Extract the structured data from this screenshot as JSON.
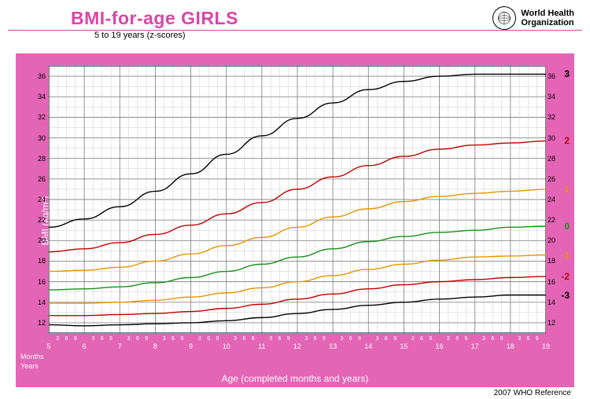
{
  "header": {
    "title": "BMI-for-age  GIRLS",
    "subtitle": "5 to 19 years (z-scores)",
    "org_line1": "World Health",
    "org_line2": "Organization"
  },
  "footer": {
    "text": "2007 WHO Reference"
  },
  "chart": {
    "type": "line",
    "background_color": "#ffffff",
    "frame_color": "#e464b6",
    "grid_major_color": "#888888",
    "grid_minor_color": "#cccccc",
    "ylabel": "BMI (kg/m²)",
    "xlabel": "Age (completed months and years)",
    "x_row_labels": [
      "Months",
      "Years"
    ],
    "ylim": [
      11,
      37
    ],
    "xlim": [
      5,
      19
    ],
    "ytick_major": [
      12,
      14,
      16,
      18,
      20,
      22,
      24,
      26,
      28,
      30,
      32,
      34,
      36
    ],
    "ytick_minor_step": 1,
    "xtick_years": [
      5,
      6,
      7,
      8,
      9,
      10,
      11,
      12,
      13,
      14,
      15,
      16,
      17,
      18,
      19
    ],
    "xtick_months": [
      3,
      6,
      9
    ],
    "label_fontsize": 12,
    "tick_fontsize": 9,
    "line_width": 1.4,
    "series": [
      {
        "z": "3",
        "color": "#000000",
        "end_y": 36.2,
        "points": [
          [
            5,
            21.3
          ],
          [
            6,
            22.1
          ],
          [
            7,
            23.3
          ],
          [
            8,
            24.8
          ],
          [
            9,
            26.5
          ],
          [
            10,
            28.4
          ],
          [
            11,
            30.2
          ],
          [
            12,
            31.9
          ],
          [
            13,
            33.4
          ],
          [
            14,
            34.7
          ],
          [
            15,
            35.5
          ],
          [
            16,
            36.0
          ],
          [
            17,
            36.2
          ],
          [
            18,
            36.2
          ],
          [
            19,
            36.2
          ]
        ]
      },
      {
        "z": "2",
        "color": "#c00000",
        "end_y": 29.7,
        "points": [
          [
            5,
            18.9
          ],
          [
            6,
            19.2
          ],
          [
            7,
            19.8
          ],
          [
            8,
            20.6
          ],
          [
            9,
            21.5
          ],
          [
            10,
            22.6
          ],
          [
            11,
            23.7
          ],
          [
            12,
            25.0
          ],
          [
            13,
            26.2
          ],
          [
            14,
            27.3
          ],
          [
            15,
            28.2
          ],
          [
            16,
            28.9
          ],
          [
            17,
            29.3
          ],
          [
            18,
            29.5
          ],
          [
            19,
            29.7
          ]
        ]
      },
      {
        "z": "1",
        "color": "#e69500",
        "end_y": 25.0,
        "points": [
          [
            5,
            17.0
          ],
          [
            6,
            17.1
          ],
          [
            7,
            17.4
          ],
          [
            8,
            18.0
          ],
          [
            9,
            18.7
          ],
          [
            10,
            19.5
          ],
          [
            11,
            20.3
          ],
          [
            12,
            21.3
          ],
          [
            13,
            22.3
          ],
          [
            14,
            23.1
          ],
          [
            15,
            23.8
          ],
          [
            16,
            24.3
          ],
          [
            17,
            24.6
          ],
          [
            18,
            24.8
          ],
          [
            19,
            25.0
          ]
        ]
      },
      {
        "z": "0",
        "color": "#1a8f1a",
        "end_y": 21.4,
        "points": [
          [
            5,
            15.2
          ],
          [
            6,
            15.3
          ],
          [
            7,
            15.5
          ],
          [
            8,
            15.9
          ],
          [
            9,
            16.4
          ],
          [
            10,
            17.0
          ],
          [
            11,
            17.7
          ],
          [
            12,
            18.4
          ],
          [
            13,
            19.2
          ],
          [
            14,
            19.9
          ],
          [
            15,
            20.4
          ],
          [
            16,
            20.8
          ],
          [
            17,
            21.0
          ],
          [
            18,
            21.3
          ],
          [
            19,
            21.4
          ]
        ]
      },
      {
        "z": "-1",
        "color": "#e69500",
        "end_y": 18.6,
        "points": [
          [
            5,
            13.9
          ],
          [
            6,
            13.9
          ],
          [
            7,
            14.0
          ],
          [
            8,
            14.2
          ],
          [
            9,
            14.5
          ],
          [
            10,
            14.9
          ],
          [
            11,
            15.4
          ],
          [
            12,
            16.0
          ],
          [
            13,
            16.6
          ],
          [
            14,
            17.2
          ],
          [
            15,
            17.7
          ],
          [
            16,
            18.1
          ],
          [
            17,
            18.4
          ],
          [
            18,
            18.5
          ],
          [
            19,
            18.6
          ]
        ]
      },
      {
        "z": "-2",
        "color": "#c00000",
        "end_y": 16.5,
        "points": [
          [
            5,
            12.7
          ],
          [
            6,
            12.7
          ],
          [
            7,
            12.8
          ],
          [
            8,
            12.9
          ],
          [
            9,
            13.1
          ],
          [
            10,
            13.4
          ],
          [
            11,
            13.8
          ],
          [
            12,
            14.3
          ],
          [
            13,
            14.8
          ],
          [
            14,
            15.3
          ],
          [
            15,
            15.7
          ],
          [
            16,
            16.0
          ],
          [
            17,
            16.2
          ],
          [
            18,
            16.4
          ],
          [
            19,
            16.5
          ]
        ]
      },
      {
        "z": "-3",
        "color": "#000000",
        "end_y": 14.7,
        "points": [
          [
            5,
            11.8
          ],
          [
            6,
            11.7
          ],
          [
            7,
            11.8
          ],
          [
            8,
            11.9
          ],
          [
            9,
            12.0
          ],
          [
            10,
            12.2
          ],
          [
            11,
            12.5
          ],
          [
            12,
            12.9
          ],
          [
            13,
            13.3
          ],
          [
            14,
            13.7
          ],
          [
            15,
            14.0
          ],
          [
            16,
            14.3
          ],
          [
            17,
            14.5
          ],
          [
            18,
            14.7
          ],
          [
            19,
            14.7
          ]
        ]
      }
    ]
  }
}
